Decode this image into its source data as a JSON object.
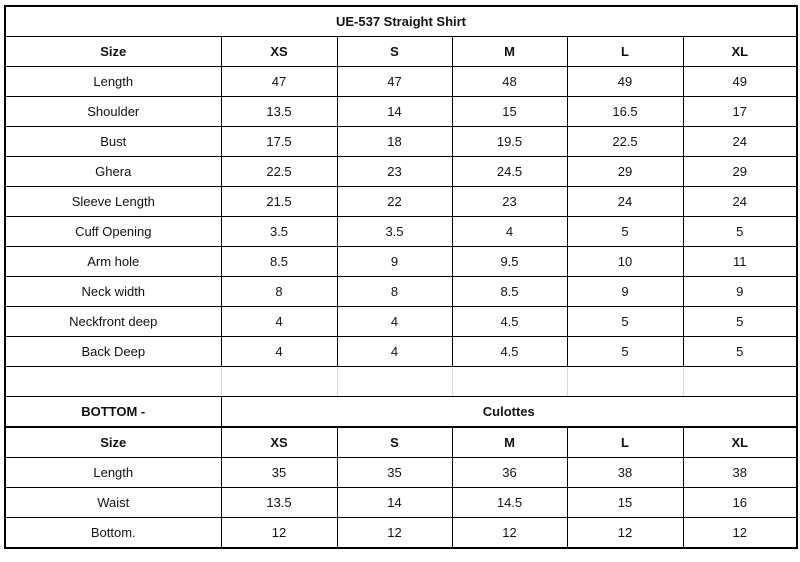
{
  "title": "UE-537 Straight Shirt",
  "top": {
    "header": [
      "Size",
      "XS",
      "S",
      "M",
      "L",
      "XL"
    ],
    "rows": [
      [
        "Length",
        "47",
        "47",
        "48",
        "49",
        "49"
      ],
      [
        "Shoulder",
        "13.5",
        "14",
        "15",
        "16.5",
        "17"
      ],
      [
        "Bust",
        "17.5",
        "18",
        "19.5",
        "22.5",
        "24"
      ],
      [
        "Ghera",
        "22.5",
        "23",
        "24.5",
        "29",
        "29"
      ],
      [
        "Sleeve Length",
        "21.5",
        "22",
        "23",
        "24",
        "24"
      ],
      [
        "Cuff Opening",
        "3.5",
        "3.5",
        "4",
        "5",
        "5"
      ],
      [
        "Arm hole",
        "8.5",
        "9",
        "9.5",
        "10",
        "11"
      ],
      [
        "Neck width",
        "8",
        "8",
        "8.5",
        "9",
        "9"
      ],
      [
        "Neckfront deep",
        "4",
        "4",
        "4.5",
        "5",
        "5"
      ],
      [
        "Back Deep",
        "4",
        "4",
        "4.5",
        "5",
        "5"
      ]
    ]
  },
  "bottom": {
    "label": "BOTTOM -",
    "name": "Culottes",
    "header": [
      "Size",
      "XS",
      "S",
      "M",
      "L",
      "XL"
    ],
    "rows": [
      [
        "Length",
        "35",
        "35",
        "36",
        "38",
        "38"
      ],
      [
        "Waist",
        "13.5",
        "14",
        "14.5",
        "15",
        "16"
      ],
      [
        "Bottom.",
        "12",
        "12",
        "12",
        "12",
        "12"
      ]
    ]
  }
}
